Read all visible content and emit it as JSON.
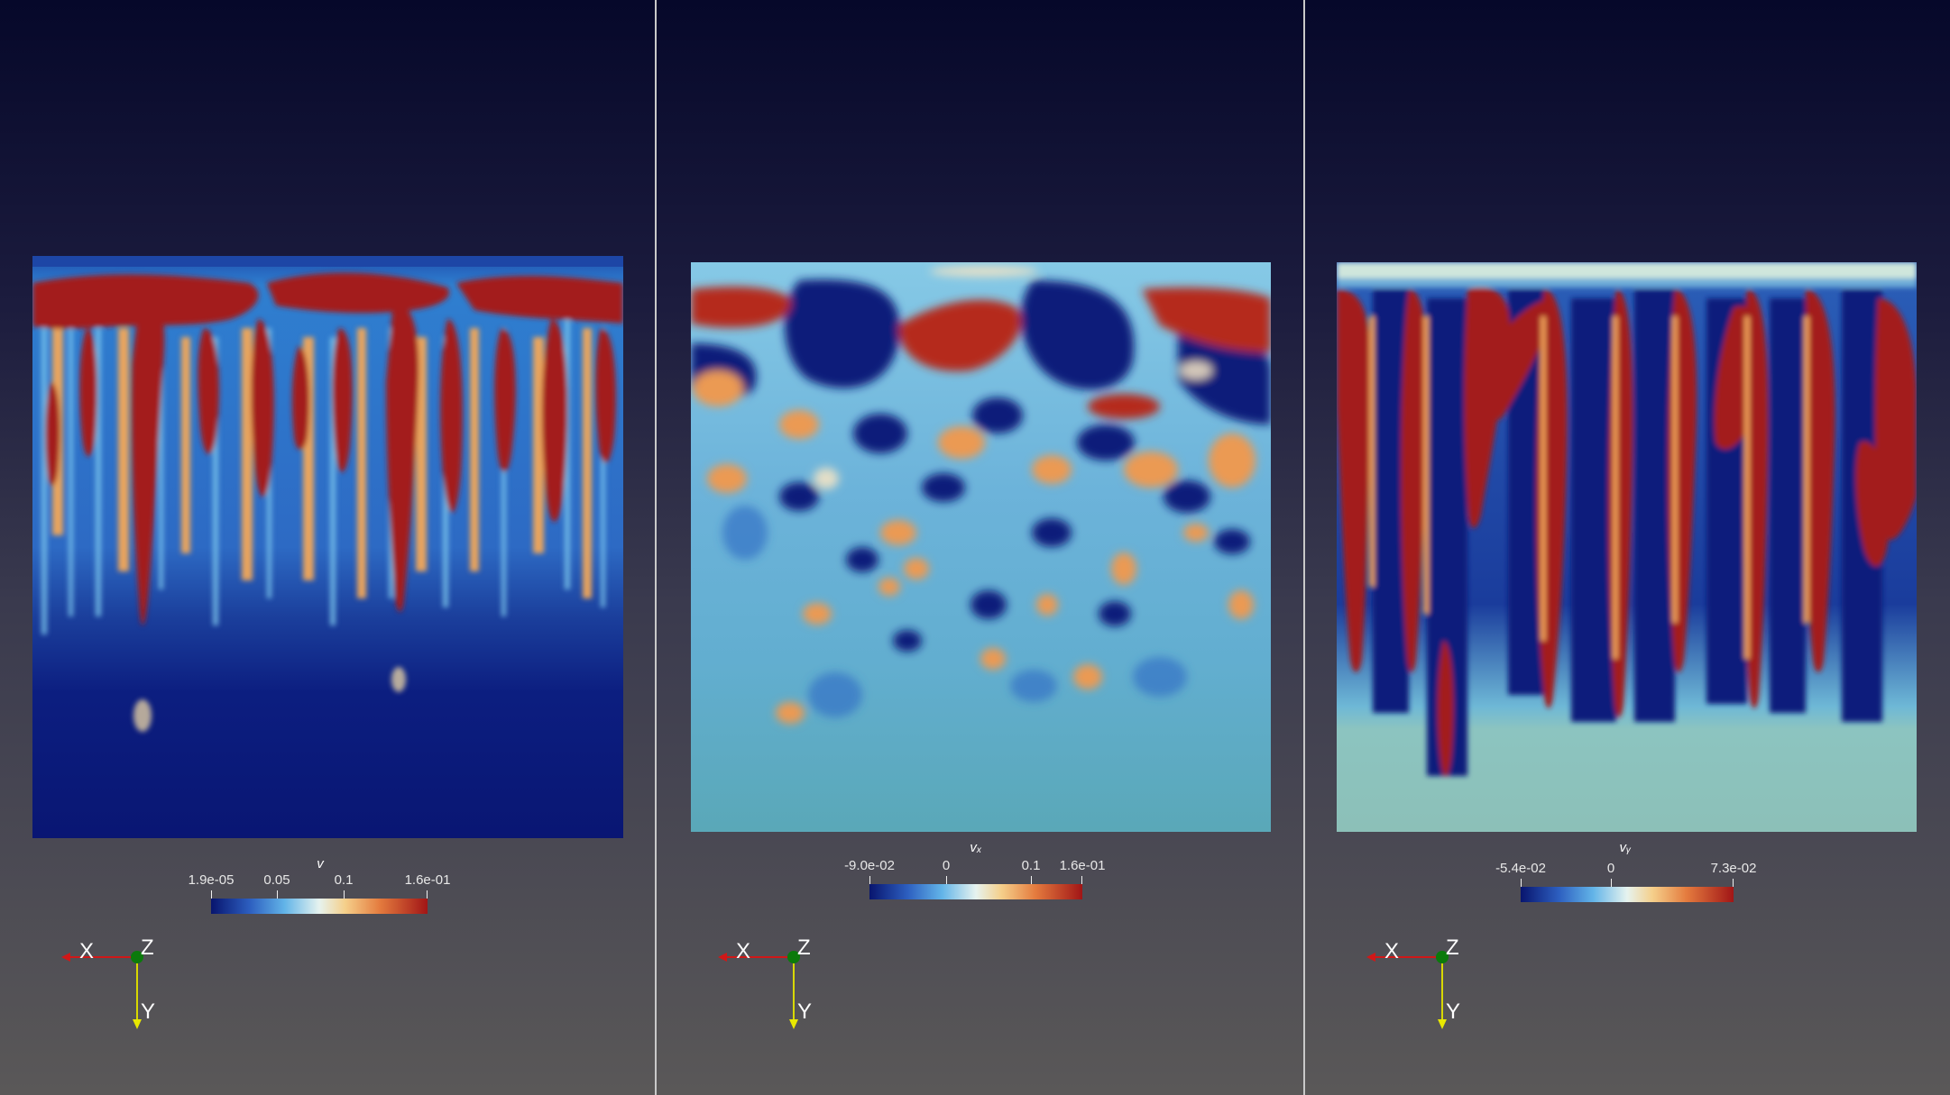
{
  "panels": [
    {
      "colorbar": {
        "title": "v",
        "ticks": [
          "1.9e-05",
          "0.05",
          "0.1",
          "1.6e-01"
        ],
        "tick_values": [
          1.9e-05,
          0.05,
          0.1,
          0.16
        ],
        "range": [
          1.9e-05,
          0.16
        ]
      },
      "axes": {
        "x": "X",
        "y": "Y",
        "z": "Z"
      }
    },
    {
      "colorbar": {
        "title": "vₓ",
        "ticks": [
          "-9.0e-02",
          "0",
          "0.1",
          "1.6e-01"
        ],
        "tick_values": [
          -0.09,
          0,
          0.1,
          0.16
        ],
        "range": [
          -0.09,
          0.16
        ]
      },
      "axes": {
        "x": "X",
        "y": "Y",
        "z": "Z"
      }
    },
    {
      "colorbar": {
        "title": "vᵧ",
        "ticks": [
          "-5.4e-02",
          "0",
          "7.3e-02"
        ],
        "tick_values": [
          -0.054,
          0,
          0.073
        ],
        "range": [
          -0.054,
          0.073
        ]
      },
      "axes": {
        "x": "X",
        "y": "Y",
        "z": "Z"
      }
    }
  ],
  "colors": {
    "low": "#08156e",
    "mid": "#e6f3ef",
    "high": "#a11516",
    "background_top": "#06082a",
    "background_bottom": "#5a5858"
  }
}
